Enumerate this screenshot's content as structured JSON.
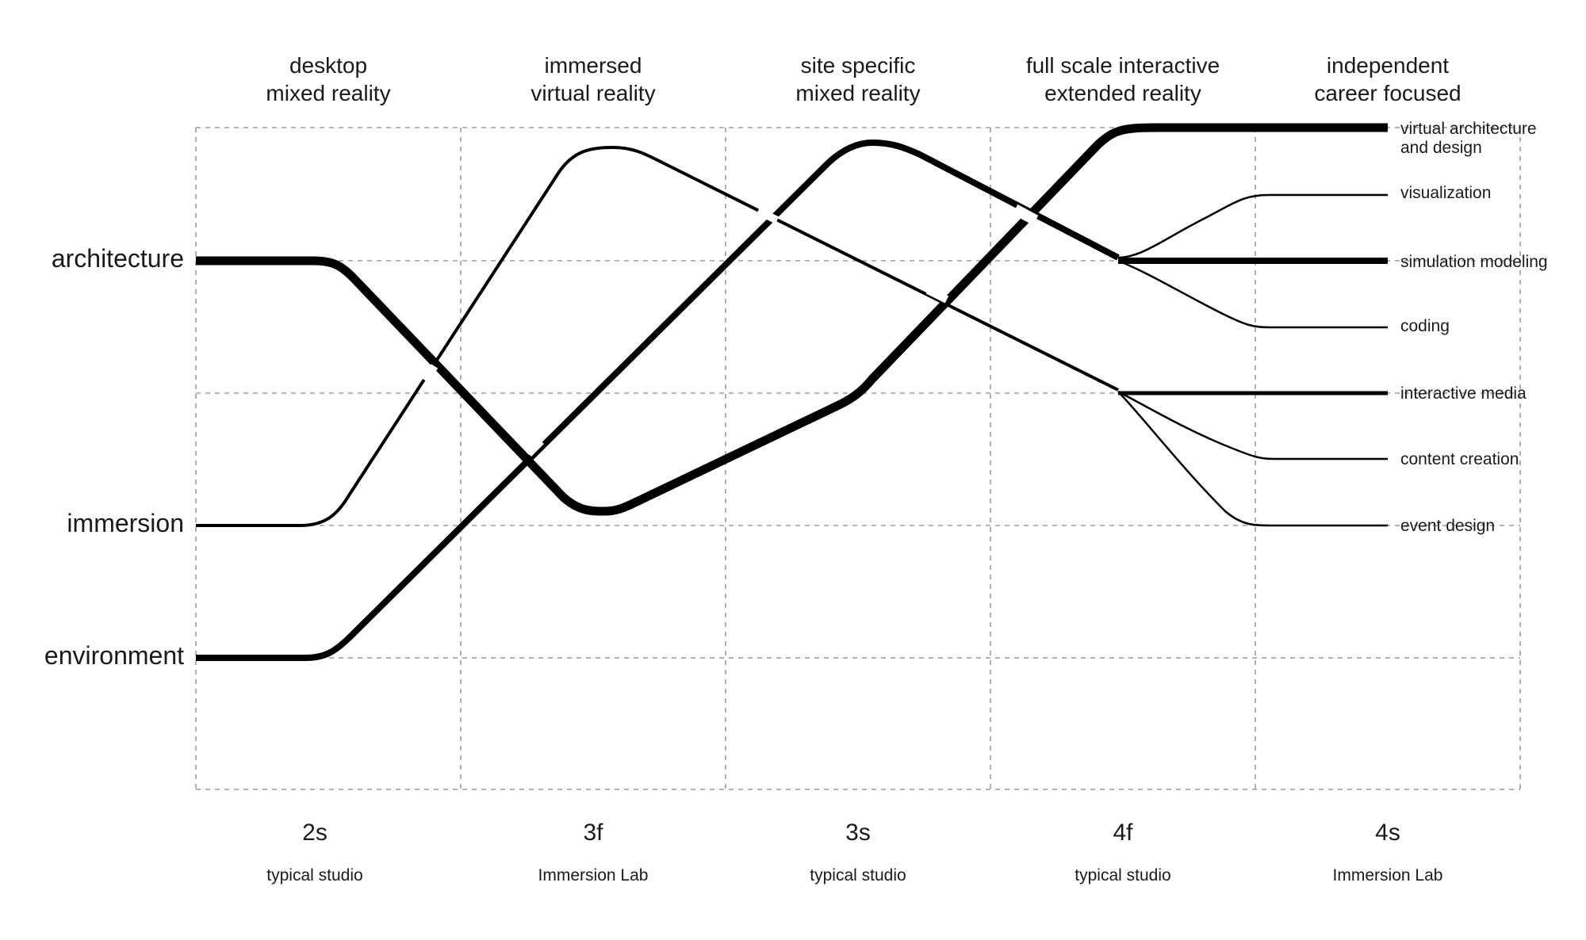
{
  "stages": [
    {
      "title_lines": [
        "desktop",
        "mixed reality"
      ],
      "code": "2s",
      "venue": "typical studio"
    },
    {
      "title_lines": [
        "immersed",
        "virtual reality"
      ],
      "code": "3f",
      "venue": "Immersion Lab"
    },
    {
      "title_lines": [
        "site specific",
        "mixed reality"
      ],
      "code": "3s",
      "venue": "typical studio"
    },
    {
      "title_lines": [
        "full scale interactive",
        "extended reality"
      ],
      "code": "4f",
      "venue": "typical studio"
    },
    {
      "title_lines": [
        "independent",
        "career focused"
      ],
      "code": "4s",
      "venue": "Immersion Lab"
    }
  ],
  "rows": [
    {
      "label": "architecture"
    },
    {
      "label": "immersion"
    },
    {
      "label": "environment"
    }
  ],
  "outcomes": [
    {
      "lines": [
        "virtual architecture",
        "and design"
      ]
    },
    {
      "lines": [
        "visualization"
      ]
    },
    {
      "lines": [
        "simulation modeling"
      ]
    },
    {
      "lines": [
        "coding"
      ]
    },
    {
      "lines": [
        "interactive media"
      ]
    },
    {
      "lines": [
        "content creation"
      ]
    },
    {
      "lines": [
        "event design"
      ]
    }
  ],
  "colors": {
    "ink": "#000000",
    "grid": "#9a9a9a",
    "background": "#ffffff"
  }
}
